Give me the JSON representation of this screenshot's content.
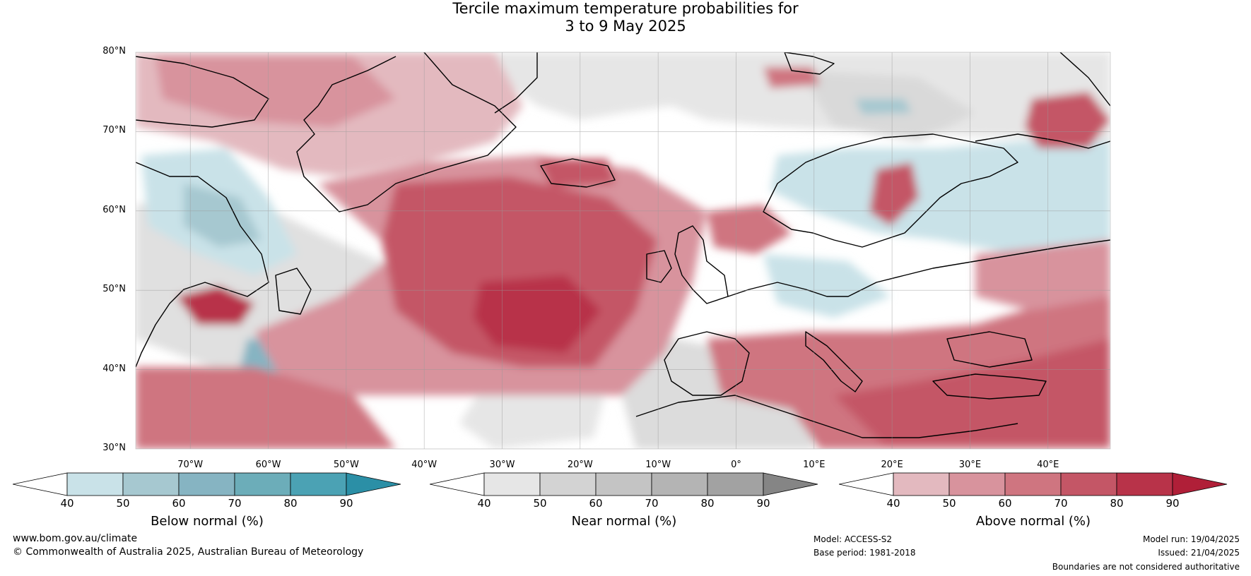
{
  "title": {
    "line1": "Tercile maximum temperature probabilities for",
    "line2": "3 to 9 May 2025"
  },
  "map": {
    "lat_labels": [
      "80°N",
      "70°N",
      "60°N",
      "50°N",
      "40°N",
      "30°N"
    ],
    "lon_labels": [
      "70°W",
      "60°W",
      "50°W",
      "40°W",
      "30°W",
      "20°W",
      "10°W",
      "0°",
      "10°E",
      "20°E",
      "30°E",
      "40°E"
    ],
    "lat_range": [
      30,
      80
    ],
    "lon_range": [
      -77,
      48
    ],
    "grid": true
  },
  "legend": {
    "below": {
      "label": "Below normal (%)",
      "ticks": [
        "40",
        "50",
        "60",
        "70",
        "80",
        "90"
      ],
      "colors": [
        "#ffffff",
        "#c9e2e8",
        "#a6c8d0",
        "#86b4c2",
        "#6cadb9",
        "#4ba2b4",
        "#2b8fa6"
      ]
    },
    "near": {
      "label": "Near normal (%)",
      "ticks": [
        "40",
        "50",
        "60",
        "70",
        "80",
        "90"
      ],
      "colors": [
        "#ffffff",
        "#e6e6e6",
        "#d3d3d3",
        "#c4c4c4",
        "#b4b4b4",
        "#a2a2a2",
        "#858585"
      ]
    },
    "above": {
      "label": "Above normal (%)",
      "ticks": [
        "40",
        "50",
        "60",
        "70",
        "80",
        "90"
      ],
      "colors": [
        "#ffffff",
        "#e3b9bf",
        "#d8939d",
        "#cf7580",
        "#c45666",
        "#b83349",
        "#b01f38"
      ]
    }
  },
  "footer": {
    "website": "www.bom.gov.au/climate",
    "copyright": "© Commonwealth of Australia 2025, Australian Bureau of Meteorology",
    "model": "Model: ACCESS-S2",
    "base_period": "Base period: 1981-2018",
    "model_run": "Model run: 19/04/2025",
    "issued": "Issued: 21/04/2025",
    "disclaimer": "Boundaries are not considered authoritative"
  }
}
